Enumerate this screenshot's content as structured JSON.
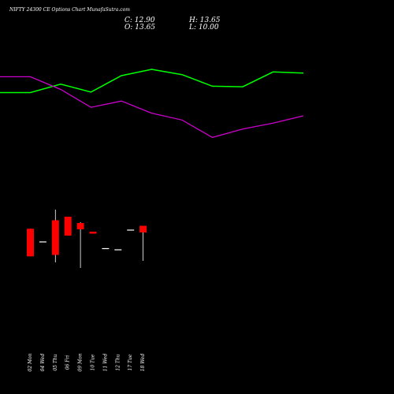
{
  "header": {
    "title": "NIFTY 24300  CE Options  Chart MunafaSutra.com",
    "close_label": "C: 12.90",
    "high_label": "H: 13.65",
    "open_label": "O: 13.65",
    "low_label": "L: 10.00"
  },
  "colors": {
    "background": "#000000",
    "up": "#00ff00",
    "down": "#ff0000",
    "upper_line": "#00ff00",
    "lower_line": "#cc00cc",
    "wick": "#ffffff"
  },
  "chart_data": {
    "type": "candlestick",
    "categories": [
      "02 Mon",
      "04 Wed",
      "05 Thu",
      "06 Fri",
      "09 Mon",
      "10 Tue",
      "11 Wed",
      "12 Thu",
      "17 Tue",
      "18 Wed"
    ],
    "candles": [
      {
        "open": 62.7,
        "high": 62.7,
        "low": 27.7,
        "close": 27.7
      },
      {
        "open": 46.0,
        "high": 46.0,
        "low": 46.0,
        "close": 46.0
      },
      {
        "open": 73.5,
        "high": 87.0,
        "low": 20.0,
        "close": 29.5
      },
      {
        "open": 78.0,
        "high": 78.0,
        "low": 54.0,
        "close": 54.0
      },
      {
        "open": 70.0,
        "high": 71.0,
        "low": 13.0,
        "close": 62.0
      },
      {
        "open": 59.0,
        "high": 59.0,
        "low": 56.5,
        "close": 56.5
      },
      {
        "open": 37.5,
        "high": 37.5,
        "low": 37.5,
        "close": 37.5
      },
      {
        "open": 36.0,
        "high": 36.0,
        "low": 36.0,
        "close": 36.0
      },
      {
        "open": 61.0,
        "high": 61.0,
        "low": 61.0,
        "close": 61.0
      },
      {
        "open": 66.5,
        "high": 66.5,
        "low": 22.0,
        "close": 58.0
      }
    ],
    "upper_line": [
      56,
      56,
      72,
      57,
      88,
      100,
      90,
      68,
      67,
      95,
      93
    ],
    "lower_line": [
      86,
      86,
      62,
      28,
      40,
      17,
      4,
      -29,
      -13,
      -2,
      12
    ],
    "xlabel": "",
    "ylabel": ""
  }
}
